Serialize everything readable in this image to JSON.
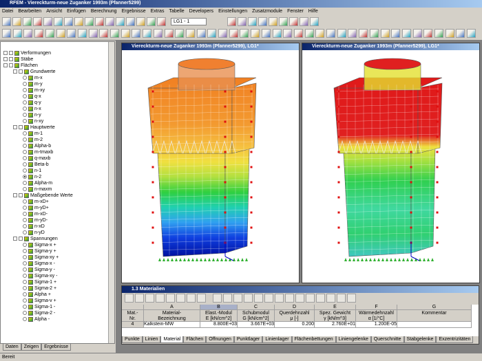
{
  "title_bar": "RFEM - Viereckturm-neue Zuganker 1993m (Pfanner5299)",
  "menu": [
    "Datei",
    "Bearbeiten",
    "Ansicht",
    "Einfügen",
    "Berechnung",
    "Ergebnisse",
    "Extras",
    "Tabelle",
    "Developers",
    "Einstellungen",
    "Zusatzmodule",
    "Fenster",
    "Hilfe"
  ],
  "toolbar": {
    "load_case": "LG1 - 1"
  },
  "navigator": {
    "tree": [
      {
        "label": "Verformungen"
      },
      {
        "label": "Stäbe"
      },
      {
        "label": "Flächen",
        "groups": [
          {
            "label": "Grundwerte",
            "items": [
              "m-x",
              "m-y",
              "m-xy",
              "q-x",
              "q-y",
              "n-x",
              "n-y",
              "n-xy"
            ]
          },
          {
            "label": "Hauptwerte",
            "checked_index": 7,
            "items": [
              "m-1",
              "m-2",
              "Alpha-b",
              "m-tmaxb",
              "q-maxb",
              "Beta-b",
              "n-1",
              "n-2",
              "Alpha-m",
              "n-maxm"
            ]
          },
          {
            "label": "Maßgebende Werte",
            "items": [
              "m-xD+",
              "m-yD+",
              "m-xD-",
              "m-yD-",
              "n-xD",
              "n-yD"
            ]
          },
          {
            "label": "Spannungen",
            "items": [
              "Sigma-x +",
              "Sigma-y +",
              "Sigma-xy +",
              "Sigma-x -",
              "Sigma-y -",
              "Sigma-xy -",
              "Sigma-1 +",
              "Sigma-2 +",
              "Alpha +",
              "Sigma-v +",
              "Sigma-1 -",
              "Sigma-2 -",
              "Alpha -"
            ]
          }
        ]
      }
    ],
    "tabs": [
      "Daten",
      "Zeigen",
      "Ergebnisse"
    ]
  },
  "windows": [
    {
      "title": "Viereckturm-neue Zuganker 1993m (Pfanner5299), LG1*"
    },
    {
      "title": "Viereckturm-neue Zuganker 1993m (Pfanner5299), LG1*"
    }
  ],
  "table": {
    "title": "1.3 Materialien",
    "column_letters": [
      "A",
      "B",
      "C",
      "D",
      "E",
      "F",
      "G"
    ],
    "headers": [
      [
        "Mat.-",
        "Nr."
      ],
      [
        "Material-",
        "Bezeichnung"
      ],
      [
        "Elast.-Modul",
        "E [kN/cm^2]"
      ],
      [
        "Schubmodul",
        "G [kN/cm^2]"
      ],
      [
        "Querdehnzahl",
        "μ [-]"
      ],
      [
        "Spez. Gewicht",
        "γ [kN/m^3]"
      ],
      [
        "Wärmedehnzahl",
        "α [1/°C]"
      ],
      [
        "",
        "Kommentar"
      ]
    ],
    "rows": [
      [
        4,
        "Kalkstein-MW",
        "8.800E+03",
        "3.667E+03",
        "0.200",
        "2.760E+01",
        "1.200E-05",
        ""
      ]
    ]
  },
  "tabs": [
    "Punkte",
    "Linien",
    "Material",
    "Flächen",
    "Öffnungen",
    "Punktlager",
    "Linienlager",
    "Flächenbettungen",
    "Liniengelenke",
    "Querschnitte",
    "Stabgelenke",
    "Exzentrizitäten"
  ],
  "status": "Bereit"
}
